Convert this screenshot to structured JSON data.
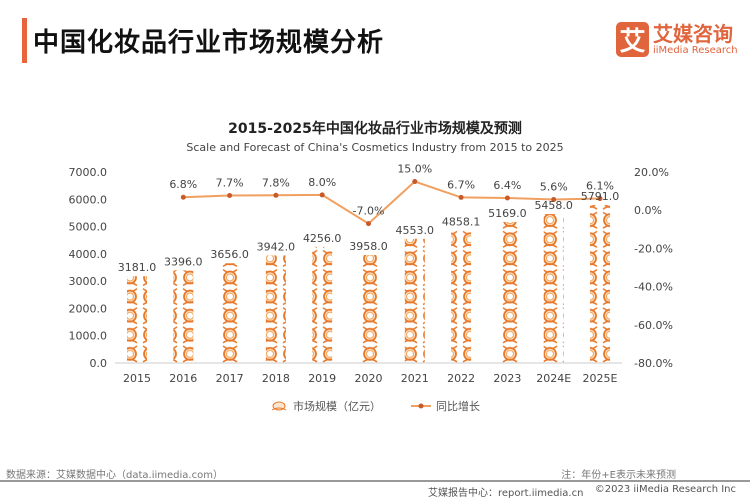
{
  "header": {
    "title": "中国化妆品行业市场规模分析",
    "logo_mark": "艾",
    "logo_cn": "艾媒咨询",
    "logo_en": "iiMedia Research"
  },
  "chart_data": {
    "type": "bar+line",
    "title": "2015-2025年中国化妆品行业市场规模及预测",
    "subtitle": "Scale and Forecast of China's Cosmetics Industry from 2015 to 2025",
    "categories": [
      "2015",
      "2016",
      "2017",
      "2018",
      "2019",
      "2020",
      "2021",
      "2022",
      "2023",
      "2024E",
      "2025E"
    ],
    "series": [
      {
        "name": "市场规模（亿元）",
        "type": "pictorial-bar",
        "axis": "left",
        "values": [
          3181.0,
          3396.0,
          3656.0,
          3942.0,
          4256.0,
          3958.0,
          4553.0,
          4858.1,
          5169.0,
          5458.0,
          5791.0
        ],
        "labels": [
          "3181.0",
          "3396.0",
          "3656.0",
          "3942.0",
          "4256.0",
          "3958.0",
          "4553.0",
          "4858.1",
          "5169.0",
          "5458.0",
          "5791.0"
        ]
      },
      {
        "name": "同比增长",
        "type": "line",
        "axis": "right",
        "values": [
          null,
          6.8,
          7.7,
          7.8,
          8.0,
          -7.0,
          15.0,
          6.7,
          6.4,
          5.6,
          6.1
        ],
        "labels": [
          "",
          "6.8%",
          "7.7%",
          "7.8%",
          "8.0%",
          "-7.0%",
          "15.0%",
          "6.7%",
          "6.4%",
          "5.6%",
          "6.1%"
        ]
      }
    ],
    "left_axis": {
      "ylim": [
        0,
        7000
      ],
      "ticks": [
        "0.0",
        "1000.0",
        "2000.0",
        "3000.0",
        "4000.0",
        "5000.0",
        "6000.0",
        "7000.0"
      ]
    },
    "right_axis": {
      "ylim": [
        -80,
        20
      ],
      "ticks": [
        "-80.0%",
        "-60.0%",
        "-40.0%",
        "-20.0%",
        "0.0%",
        "20.0%"
      ]
    },
    "grid": false,
    "legend": "bottom",
    "colors": {
      "bar": "#f0a050",
      "bar_stroke": "#e8782a",
      "line": "#f0a060",
      "marker": "#c85a2a"
    }
  },
  "footer": {
    "source": "数据来源：艾媒数据中心（data.iimedia.com）",
    "note": "注：年份+E表示未来预测",
    "report": "艾媒报告中心：report.iimedia.cn",
    "copyright": "©2023  iiMedia Research  Inc"
  }
}
